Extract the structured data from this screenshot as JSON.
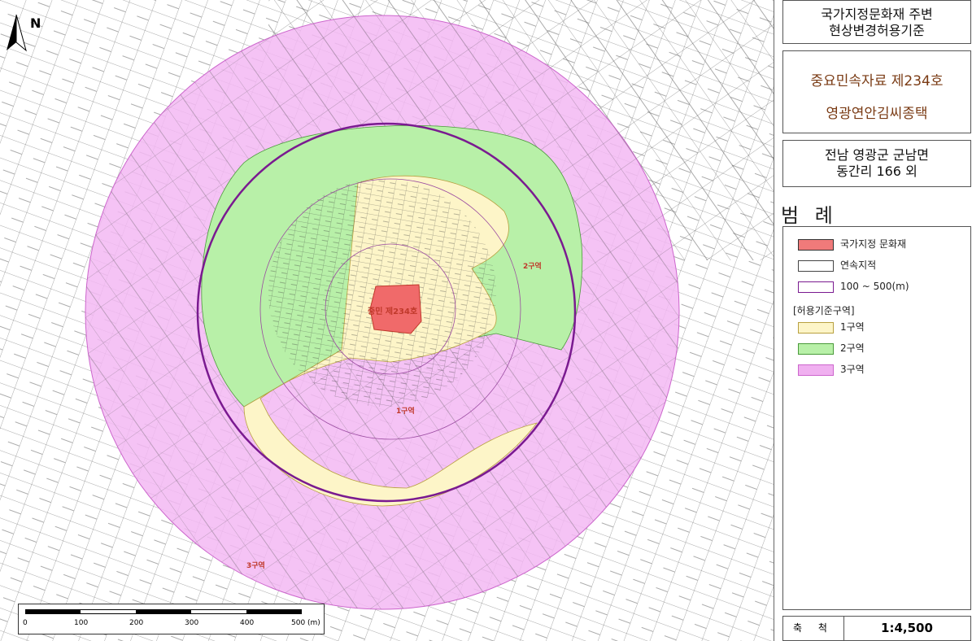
{
  "header": {
    "title_line1": "국가지정문화재 주변",
    "title_line2": "현상변경허용기준"
  },
  "heritage": {
    "name_line1": "중요민속자료 제234호",
    "name_line2": "영광연안김씨종택"
  },
  "location": {
    "line1": "전남 영광군 군남면",
    "line2": "동간리 166 외"
  },
  "legend": {
    "title": "범 례",
    "items": [
      {
        "label": "국가지정 문화재",
        "color": "#f07a7a"
      },
      {
        "label": "연속지적",
        "color": "#ffffff"
      },
      {
        "label": "100 ~ 500(m)",
        "color": "#ffffff"
      }
    ],
    "zone_header": "[허용기준구역]",
    "zones": [
      {
        "label": "1구역",
        "color": "#fdf5c8"
      },
      {
        "label": "2구역",
        "color": "#b8f0a8"
      },
      {
        "label": "3구역",
        "color": "#f0b0f0"
      }
    ]
  },
  "scale": {
    "label": "축 척",
    "value": "1:4,500"
  },
  "map": {
    "north": "N",
    "site_label": "중민 제234호",
    "zone1_label": "1구역",
    "zone2_label": "2구역",
    "zone3_label": "3구역",
    "scalebar_ticks": [
      "0",
      "100",
      "200",
      "300",
      "400",
      "500",
      "(m)"
    ]
  }
}
